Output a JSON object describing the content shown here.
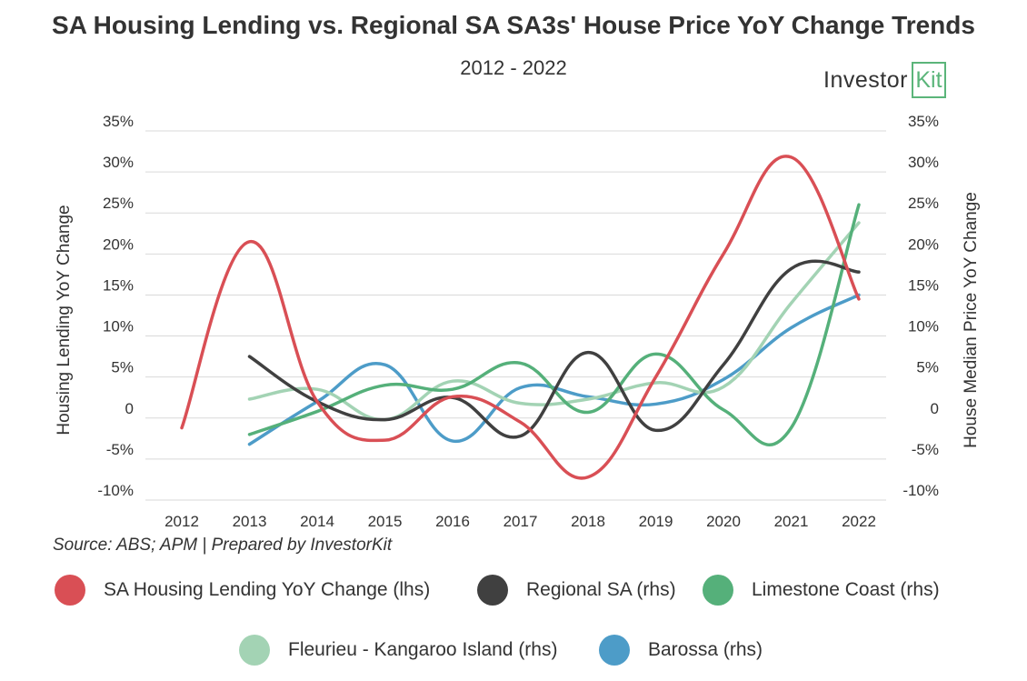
{
  "header": {
    "title": "SA Housing Lending vs. Regional SA SA3s' House Price YoY Change Trends",
    "subtitle": "2012 - 2022"
  },
  "logo": {
    "text": "Investor",
    "box_letter": "Kit"
  },
  "source": "Source: ABS; APM | Prepared by InvestorKit",
  "colors": {
    "lending": "#d94f55",
    "regional": "#404040",
    "limestone": "#55b07a",
    "fleurieu": "#a3d3b4",
    "barossa": "#4d9cc8",
    "grid": "#d9d9d9"
  },
  "chart_data": {
    "type": "line",
    "title": "SA Housing Lending vs. Regional SA SA3s' House Price YoY Change Trends",
    "subtitle": "2012 - 2022",
    "xlabel": "",
    "ylabel_left": "Housing Lending YoY Change",
    "ylabel_right": "House Median Price YoY Change",
    "ylim_left": [
      -10,
      35
    ],
    "ylim_right": [
      -10,
      35
    ],
    "yticks": [
      "35%",
      "30%",
      "25%",
      "20%",
      "15%",
      "10%",
      "5%",
      "0",
      "-5%",
      "-10%"
    ],
    "categories": [
      "2012",
      "2013",
      "2014",
      "2015",
      "2016",
      "2017",
      "2018",
      "2019",
      "2020",
      "2021",
      "2022"
    ],
    "grid": true,
    "legend_position": "bottom",
    "series": [
      {
        "name": "SA Housing Lending YoY Change (lhs)",
        "axis": "left",
        "color": "#d94f55",
        "values": [
          -1.2,
          21.5,
          2.0,
          -2.7,
          2.6,
          -0.5,
          -7.2,
          5.0,
          20.0,
          31.8,
          14.5
        ]
      },
      {
        "name": "Regional SA (rhs)",
        "axis": "right",
        "color": "#404040",
        "values": [
          null,
          7.5,
          2.0,
          -0.2,
          2.5,
          -2.2,
          8.0,
          -1.5,
          6.5,
          18.2,
          17.8
        ]
      },
      {
        "name": "Limestone Coast (rhs)",
        "axis": "right",
        "color": "#55b07a",
        "values": [
          null,
          -2.0,
          0.8,
          4.0,
          3.5,
          6.7,
          0.7,
          7.8,
          1.0,
          -1.2,
          26.0
        ]
      },
      {
        "name": "Fleurieu - Kangaroo Island (rhs)",
        "axis": "right",
        "color": "#a3d3b4",
        "values": [
          null,
          2.3,
          3.5,
          -0.2,
          4.5,
          1.8,
          2.3,
          4.3,
          3.8,
          14.0,
          23.8
        ]
      },
      {
        "name": "Barossa (rhs)",
        "axis": "right",
        "color": "#4d9cc8",
        "values": [
          null,
          -3.2,
          2.0,
          6.5,
          -2.8,
          3.7,
          2.6,
          1.7,
          4.7,
          11.0,
          15.0
        ]
      }
    ]
  }
}
